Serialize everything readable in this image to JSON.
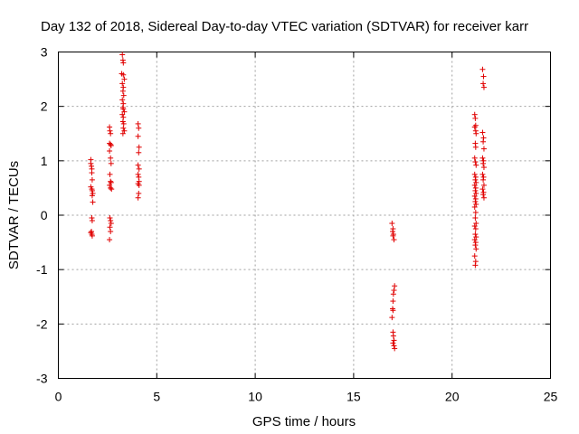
{
  "chart_data": {
    "type": "scatter",
    "title": "Day 132 of 2018, Sidereal Day-to-day VTEC variation (SDTVAR) for receiver karr",
    "xlabel": "GPS time / hours",
    "ylabel": "SDTVAR / TECUs",
    "xlim": [
      0,
      25
    ],
    "ylim": [
      -3,
      3
    ],
    "xticks": [
      0,
      5,
      10,
      15,
      20,
      25
    ],
    "yticks": [
      -3,
      -2,
      -1,
      0,
      1,
      2,
      3
    ],
    "grid": true,
    "marker": "+",
    "color": "#e00000",
    "series": [
      {
        "name": "SDTVAR",
        "points": [
          [
            1.65,
            1.02
          ],
          [
            1.65,
            0.95
          ],
          [
            1.68,
            0.9
          ],
          [
            1.7,
            0.85
          ],
          [
            1.7,
            0.78
          ],
          [
            1.72,
            0.65
          ],
          [
            1.65,
            0.52
          ],
          [
            1.7,
            0.48
          ],
          [
            1.72,
            0.45
          ],
          [
            1.75,
            0.4
          ],
          [
            1.72,
            0.36
          ],
          [
            1.75,
            0.24
          ],
          [
            1.7,
            -0.05
          ],
          [
            1.72,
            -0.1
          ],
          [
            1.68,
            -0.3
          ],
          [
            1.7,
            -0.35
          ],
          [
            1.72,
            -0.38
          ],
          [
            1.65,
            -0.32
          ],
          [
            2.6,
            1.62
          ],
          [
            2.62,
            1.55
          ],
          [
            2.65,
            1.5
          ],
          [
            2.6,
            1.32
          ],
          [
            2.65,
            1.3
          ],
          [
            2.68,
            1.28
          ],
          [
            2.6,
            1.18
          ],
          [
            2.65,
            1.05
          ],
          [
            2.68,
            0.95
          ],
          [
            2.62,
            0.75
          ],
          [
            2.65,
            0.62
          ],
          [
            2.68,
            0.6
          ],
          [
            2.6,
            0.55
          ],
          [
            2.65,
            0.5
          ],
          [
            2.7,
            0.48
          ],
          [
            2.62,
            -0.05
          ],
          [
            2.65,
            -0.1
          ],
          [
            2.68,
            -0.15
          ],
          [
            2.62,
            -0.22
          ],
          [
            2.65,
            -0.3
          ],
          [
            2.6,
            -0.45
          ],
          [
            3.25,
            2.95
          ],
          [
            3.28,
            2.85
          ],
          [
            3.3,
            2.8
          ],
          [
            3.22,
            2.6
          ],
          [
            3.3,
            2.58
          ],
          [
            3.35,
            2.5
          ],
          [
            3.25,
            2.42
          ],
          [
            3.3,
            2.35
          ],
          [
            3.28,
            2.28
          ],
          [
            3.32,
            2.2
          ],
          [
            3.25,
            2.12
          ],
          [
            3.3,
            2.05
          ],
          [
            3.28,
            1.98
          ],
          [
            3.3,
            1.95
          ],
          [
            3.35,
            1.9
          ],
          [
            3.25,
            1.85
          ],
          [
            3.3,
            1.8
          ],
          [
            3.28,
            1.72
          ],
          [
            3.32,
            1.68
          ],
          [
            3.3,
            1.6
          ],
          [
            3.35,
            1.55
          ],
          [
            3.28,
            1.5
          ],
          [
            4.05,
            1.68
          ],
          [
            4.08,
            1.6
          ],
          [
            4.05,
            1.45
          ],
          [
            4.1,
            1.25
          ],
          [
            4.08,
            1.15
          ],
          [
            4.05,
            0.92
          ],
          [
            4.1,
            0.85
          ],
          [
            4.05,
            0.75
          ],
          [
            4.08,
            0.7
          ],
          [
            4.1,
            0.62
          ],
          [
            4.05,
            0.58
          ],
          [
            4.1,
            0.55
          ],
          [
            4.08,
            0.4
          ],
          [
            4.05,
            0.32
          ],
          [
            16.95,
            -0.15
          ],
          [
            17.0,
            -0.25
          ],
          [
            16.98,
            -0.3
          ],
          [
            17.02,
            -0.35
          ],
          [
            17.0,
            -0.38
          ],
          [
            17.05,
            -0.45
          ],
          [
            17.08,
            -1.3
          ],
          [
            17.05,
            -1.38
          ],
          [
            17.02,
            -1.45
          ],
          [
            17.0,
            -1.58
          ],
          [
            16.98,
            -1.72
          ],
          [
            17.0,
            -1.75
          ],
          [
            16.95,
            -1.88
          ],
          [
            17.0,
            -2.15
          ],
          [
            17.02,
            -2.22
          ],
          [
            17.05,
            -2.3
          ],
          [
            17.0,
            -2.35
          ],
          [
            17.05,
            -2.4
          ],
          [
            17.08,
            -2.45
          ],
          [
            21.15,
            1.85
          ],
          [
            21.18,
            1.78
          ],
          [
            21.2,
            1.65
          ],
          [
            21.15,
            1.62
          ],
          [
            21.2,
            1.55
          ],
          [
            21.22,
            1.5
          ],
          [
            21.18,
            1.32
          ],
          [
            21.2,
            1.25
          ],
          [
            21.15,
            1.05
          ],
          [
            21.18,
            0.98
          ],
          [
            21.22,
            0.92
          ],
          [
            21.15,
            0.75
          ],
          [
            21.2,
            0.7
          ],
          [
            21.18,
            0.65
          ],
          [
            21.22,
            0.6
          ],
          [
            21.15,
            0.55
          ],
          [
            21.2,
            0.5
          ],
          [
            21.18,
            0.45
          ],
          [
            21.22,
            0.4
          ],
          [
            21.15,
            0.35
          ],
          [
            21.2,
            0.3
          ],
          [
            21.18,
            0.25
          ],
          [
            21.22,
            0.2
          ],
          [
            21.15,
            0.15
          ],
          [
            21.2,
            0.05
          ],
          [
            21.18,
            -0.05
          ],
          [
            21.22,
            -0.15
          ],
          [
            21.15,
            -0.2
          ],
          [
            21.2,
            -0.25
          ],
          [
            21.18,
            -0.35
          ],
          [
            21.22,
            -0.4
          ],
          [
            21.15,
            -0.45
          ],
          [
            21.2,
            -0.5
          ],
          [
            21.18,
            -0.55
          ],
          [
            21.22,
            -0.62
          ],
          [
            21.15,
            -0.75
          ],
          [
            21.2,
            -0.85
          ],
          [
            21.18,
            -0.92
          ],
          [
            21.55,
            2.68
          ],
          [
            21.6,
            2.55
          ],
          [
            21.58,
            2.42
          ],
          [
            21.62,
            2.35
          ],
          [
            21.55,
            1.52
          ],
          [
            21.6,
            1.42
          ],
          [
            21.58,
            1.35
          ],
          [
            21.62,
            1.22
          ],
          [
            21.55,
            1.05
          ],
          [
            21.6,
            1.0
          ],
          [
            21.58,
            0.95
          ],
          [
            21.62,
            0.88
          ],
          [
            21.55,
            0.75
          ],
          [
            21.6,
            0.7
          ],
          [
            21.58,
            0.65
          ],
          [
            21.62,
            0.55
          ],
          [
            21.55,
            0.48
          ],
          [
            21.6,
            0.42
          ],
          [
            21.58,
            0.38
          ],
          [
            21.62,
            0.32
          ]
        ]
      }
    ]
  }
}
